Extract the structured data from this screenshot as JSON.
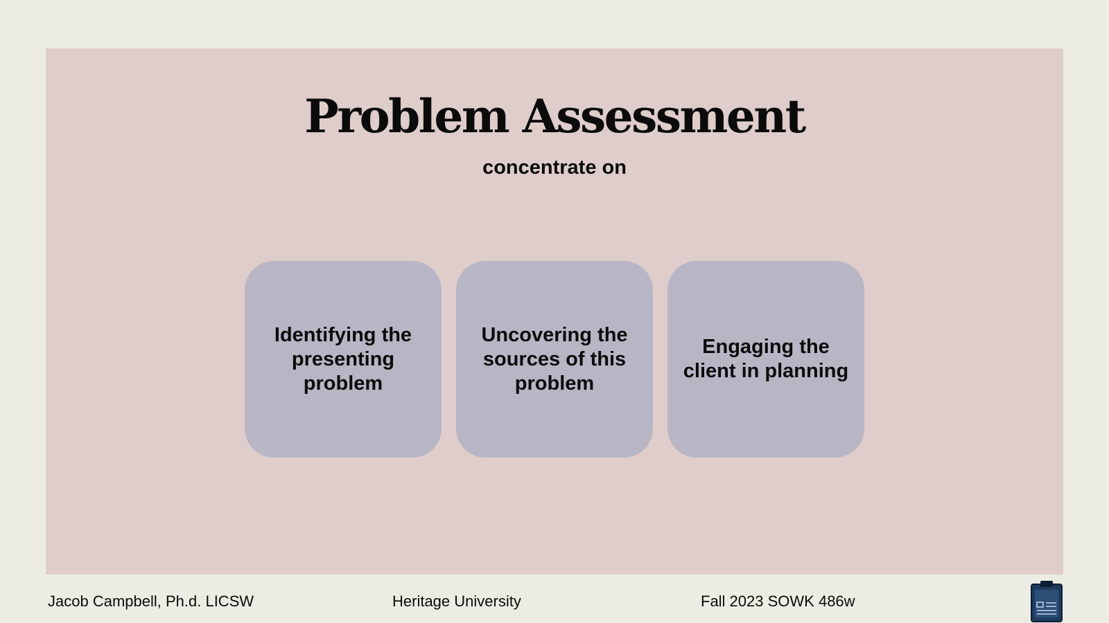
{
  "slide": {
    "title": "Problem Assessment",
    "subtitle": "concentrate on",
    "cards": [
      {
        "text": "Identifying the presenting problem"
      },
      {
        "text": "Uncovering the sources of this problem"
      },
      {
        "text": "Engaging the client in planning"
      }
    ]
  },
  "footer": {
    "author": "Jacob Campbell, Ph.d. LICSW",
    "university": "Heritage University",
    "course": "Fall 2023 SOWK 486w",
    "icon": "clipboard-icon"
  },
  "colors": {
    "background": "#ecece4",
    "panel": "#dfcdcb",
    "card": "#b8b6c4",
    "clipboard": "#1f3b5e"
  }
}
